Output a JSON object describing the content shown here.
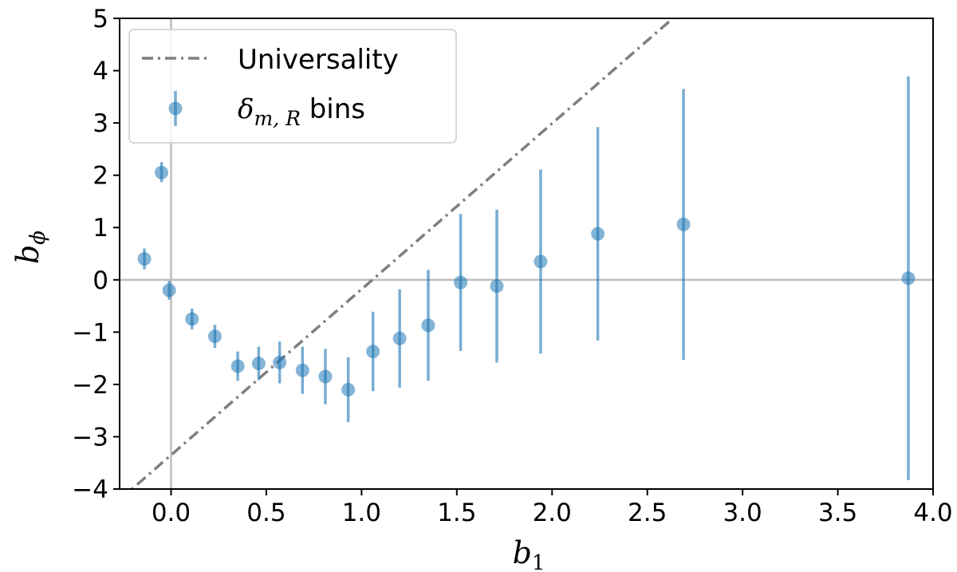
{
  "chart_data": {
    "type": "scatter",
    "xlabel": "b",
    "xlabel_sub": "1",
    "ylabel": "b",
    "ylabel_sub": "ϕ",
    "xlim": [
      -0.27,
      4.0
    ],
    "ylim": [
      -4,
      5
    ],
    "xticks": [
      0.0,
      0.5,
      1.0,
      1.5,
      2.0,
      2.5,
      3.0,
      3.5,
      4.0
    ],
    "xtick_labels": [
      "0.0",
      "0.5",
      "1.0",
      "1.5",
      "2.0",
      "2.5",
      "3.0",
      "3.5",
      "4.0"
    ],
    "yticks": [
      -4,
      -3,
      -2,
      -1,
      0,
      1,
      2,
      3,
      4,
      5
    ],
    "ytick_labels": [
      "−4",
      "−3",
      "−2",
      "−1",
      "0",
      "1",
      "2",
      "3",
      "4",
      "5"
    ],
    "reference_lines": {
      "h": 0,
      "v": 0,
      "color": "#bfbfbf"
    },
    "legend": {
      "position": "top-left",
      "entries": [
        {
          "label": "Universality",
          "style": "dashdot",
          "color": "#7f7f7f"
        },
        {
          "label_main": "δ",
          "label_sub": "m, R",
          "label_rest": " bins",
          "style": "errorbar",
          "color": "#1f77b4"
        }
      ]
    },
    "series": [
      {
        "name": "Universality",
        "kind": "line",
        "style": "dashdot",
        "color": "#7f7f7f",
        "slope": 3.17,
        "intercept": -3.35
      },
      {
        "name": "δm,R bins",
        "kind": "errorbar",
        "color": "#1f77b4",
        "points": [
          {
            "x": -0.14,
            "y": 0.4,
            "lo": 0.2,
            "hi": 0.6
          },
          {
            "x": -0.05,
            "y": 2.05,
            "lo": 1.87,
            "hi": 2.25
          },
          {
            "x": -0.01,
            "y": -0.2,
            "lo": -0.38,
            "hi": -0.02
          },
          {
            "x": 0.11,
            "y": -0.75,
            "lo": -0.95,
            "hi": -0.55
          },
          {
            "x": 0.23,
            "y": -1.08,
            "lo": -1.3,
            "hi": -0.86
          },
          {
            "x": 0.35,
            "y": -1.65,
            "lo": -1.93,
            "hi": -1.37
          },
          {
            "x": 0.46,
            "y": -1.6,
            "lo": -1.92,
            "hi": -1.28
          },
          {
            "x": 0.57,
            "y": -1.58,
            "lo": -1.98,
            "hi": -1.18
          },
          {
            "x": 0.69,
            "y": -1.73,
            "lo": -2.18,
            "hi": -1.28
          },
          {
            "x": 0.81,
            "y": -1.85,
            "lo": -2.38,
            "hi": -1.32
          },
          {
            "x": 0.93,
            "y": -2.1,
            "lo": -2.72,
            "hi": -1.48
          },
          {
            "x": 1.06,
            "y": -1.37,
            "lo": -2.13,
            "hi": -0.61
          },
          {
            "x": 1.2,
            "y": -1.12,
            "lo": -2.06,
            "hi": -0.18
          },
          {
            "x": 1.35,
            "y": -0.87,
            "lo": -1.93,
            "hi": 0.19
          },
          {
            "x": 1.52,
            "y": -0.05,
            "lo": -1.36,
            "hi": 1.26
          },
          {
            "x": 1.71,
            "y": -0.12,
            "lo": -1.58,
            "hi": 1.34
          },
          {
            "x": 1.94,
            "y": 0.35,
            "lo": -1.41,
            "hi": 2.11
          },
          {
            "x": 2.24,
            "y": 0.88,
            "lo": -1.16,
            "hi": 2.92
          },
          {
            "x": 2.69,
            "y": 1.06,
            "lo": -1.53,
            "hi": 3.65
          },
          {
            "x": 3.87,
            "y": 0.03,
            "lo": -3.83,
            "hi": 3.89
          }
        ]
      }
    ]
  }
}
